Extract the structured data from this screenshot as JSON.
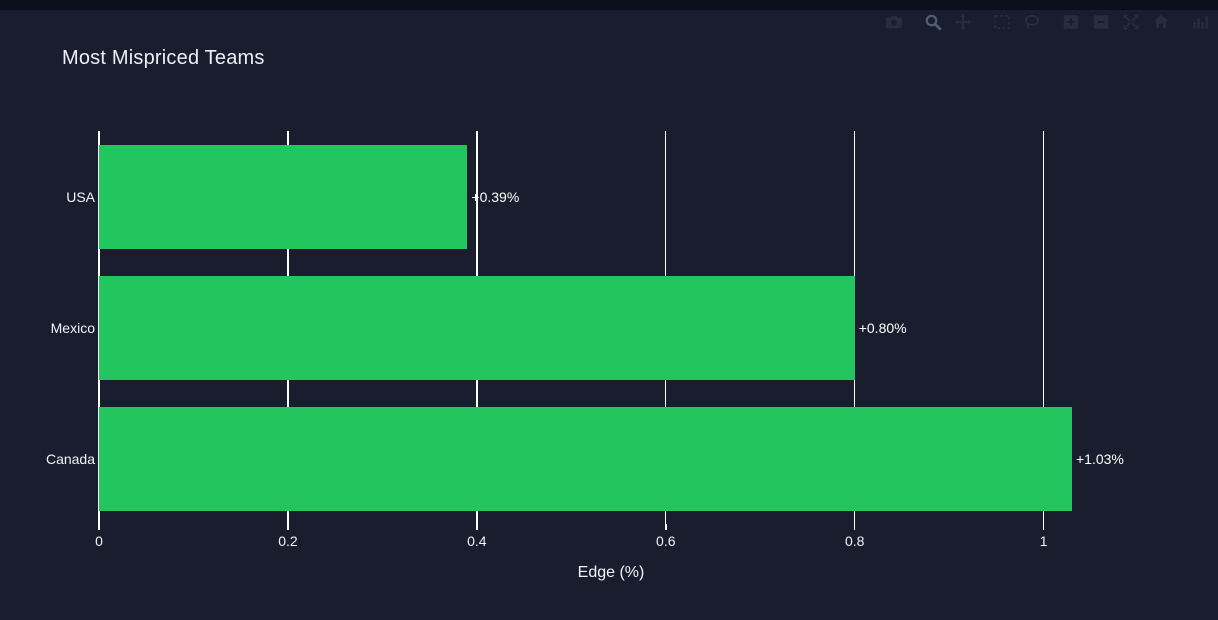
{
  "colors": {
    "page_top_strip": "#0d101c",
    "chart_background": "#1a1d2e",
    "bar_green": "#22c55e",
    "grid_white": "#ffffff",
    "text": "#f2f3f7",
    "modebar_icon": "#272c40",
    "modebar_icon_active": "#545c7b"
  },
  "modebar": {
    "icons": [
      {
        "name": "camera",
        "active": false,
        "group_start": false
      },
      {
        "name": "zoom",
        "active": true,
        "group_start": true
      },
      {
        "name": "pan",
        "active": false,
        "group_start": false
      },
      {
        "name": "box-select",
        "active": false,
        "group_start": true
      },
      {
        "name": "lasso-select",
        "active": false,
        "group_start": false
      },
      {
        "name": "zoom-in",
        "active": false,
        "group_start": true
      },
      {
        "name": "zoom-out",
        "active": false,
        "group_start": false
      },
      {
        "name": "autoscale",
        "active": false,
        "group_start": false
      },
      {
        "name": "reset-axes",
        "active": false,
        "group_start": false
      },
      {
        "name": "plotly-logo",
        "active": false,
        "group_start": true
      }
    ]
  },
  "chart_data": {
    "type": "bar",
    "orientation": "horizontal",
    "title": "Most Mispriced Teams",
    "categories": [
      "USA",
      "Mexico",
      "Canada"
    ],
    "values": [
      0.39,
      0.8,
      1.03
    ],
    "value_labels": [
      "+0.39%",
      "+0.80%",
      "+1.03%"
    ],
    "xlabel": "Edge (%)",
    "xlim": [
      0,
      1.084
    ],
    "xticks": [
      0,
      0.2,
      0.4,
      0.6,
      0.8,
      1
    ],
    "xtick_labels": [
      "0",
      "0.2",
      "0.4",
      "0.6",
      "0.8",
      "1"
    ],
    "bar_color": "#22c55e",
    "grid": true,
    "zeroline": true,
    "legend": false
  }
}
